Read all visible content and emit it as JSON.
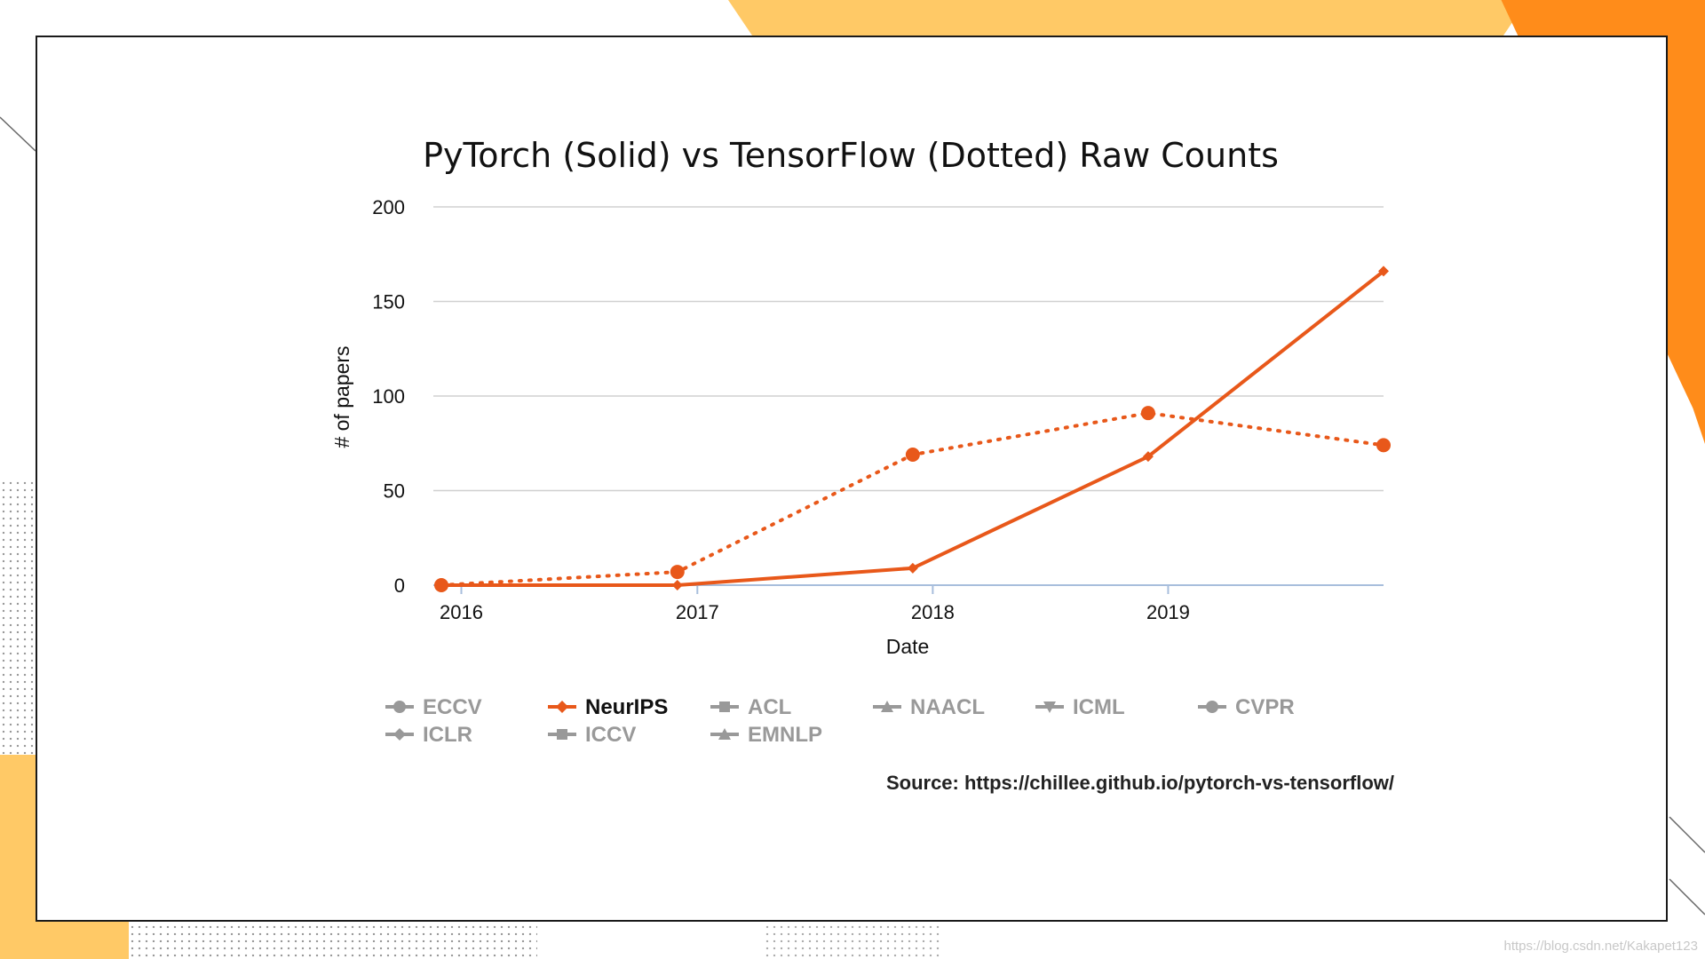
{
  "chart_data": {
    "type": "line",
    "title": "PyTorch (Solid) vs TensorFlow (Dotted) Raw Counts",
    "xlabel": "Date",
    "ylabel": "# of papers",
    "x_ticks": [
      "2016",
      "2017",
      "2018",
      "2019"
    ],
    "y_ticks": [
      0,
      50,
      100,
      150,
      200
    ],
    "ylim": [
      0,
      200
    ],
    "grid": true,
    "legend_position": "bottom",
    "x": [
      "2015-12",
      "2016-12",
      "2017-12",
      "2018-12",
      "2019-12"
    ],
    "series": [
      {
        "framework": "PyTorch",
        "conference": "NeurIPS",
        "style": "solid",
        "marker": "diamond",
        "values": [
          0,
          0,
          9,
          68,
          166
        ]
      },
      {
        "framework": "TensorFlow",
        "conference": "NeurIPS",
        "style": "dotted",
        "marker": "circle",
        "values": [
          0,
          7,
          69,
          91,
          74
        ]
      }
    ],
    "legend": [
      {
        "label": "ECCV",
        "marker": "circle",
        "active": false
      },
      {
        "label": "NeurIPS",
        "marker": "diamond",
        "active": true
      },
      {
        "label": "ACL",
        "marker": "square",
        "active": false
      },
      {
        "label": "NAACL",
        "marker": "triangle",
        "active": false
      },
      {
        "label": "ICML",
        "marker": "triangle-down",
        "active": false
      },
      {
        "label": "CVPR",
        "marker": "circle",
        "active": false
      },
      {
        "label": "ICLR",
        "marker": "diamond",
        "active": false
      },
      {
        "label": "ICCV",
        "marker": "square",
        "active": false
      },
      {
        "label": "EMNLP",
        "marker": "triangle",
        "active": false
      }
    ]
  },
  "source_text": "Source: https://chillee.github.io/pytorch-vs-tensorflow/",
  "watermark": "https://blog.csdn.net/Kakapet123",
  "colors": {
    "series": "#e8581a",
    "grid": "#d0d0d0",
    "x_axis": "#a8bedc",
    "legend_inactive": "#999999",
    "legend_active_text": "#111111",
    "accent_orange": "#ff8c1a",
    "accent_yellow": "#ffc966"
  }
}
